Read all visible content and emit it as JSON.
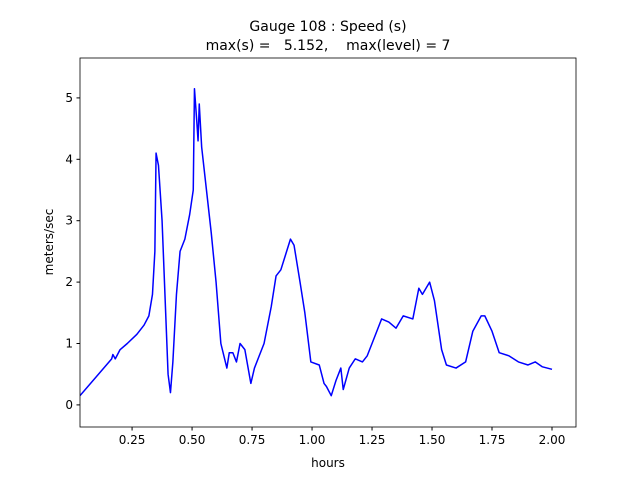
{
  "chart_data": {
    "type": "line",
    "title": "Gauge 108 : Speed (s)",
    "subtitle": "max(s) =   5.152,    max(level) = 7",
    "x_label": "hours",
    "y_label": "meters/sec",
    "x": [
      0.033,
      0.165,
      0.17,
      0.18,
      0.2,
      0.23,
      0.27,
      0.3,
      0.32,
      0.335,
      0.345,
      0.35,
      0.36,
      0.375,
      0.39,
      0.4,
      0.41,
      0.42,
      0.435,
      0.45,
      0.47,
      0.49,
      0.505,
      0.51,
      0.52,
      0.525,
      0.53,
      0.54,
      0.56,
      0.58,
      0.6,
      0.62,
      0.645,
      0.655,
      0.67,
      0.685,
      0.7,
      0.72,
      0.745,
      0.76,
      0.78,
      0.8,
      0.83,
      0.85,
      0.87,
      0.89,
      0.91,
      0.925,
      0.95,
      0.97,
      0.995,
      1.03,
      1.05,
      1.06,
      1.08,
      1.1,
      1.12,
      1.13,
      1.155,
      1.18,
      1.21,
      1.23,
      1.26,
      1.29,
      1.32,
      1.35,
      1.38,
      1.42,
      1.445,
      1.46,
      1.49,
      1.51,
      1.54,
      1.56,
      1.6,
      1.64,
      1.67,
      1.705,
      1.72,
      1.75,
      1.78,
      1.82,
      1.86,
      1.9,
      1.93,
      1.96,
      1.98,
      2.0
    ],
    "series": [
      {
        "name": "s",
        "color": "#0000ff",
        "values": [
          0.15,
          0.75,
          0.82,
          0.75,
          0.9,
          1.0,
          1.15,
          1.3,
          1.45,
          1.8,
          2.5,
          4.1,
          3.9,
          3.0,
          1.5,
          0.5,
          0.2,
          0.7,
          1.8,
          2.5,
          2.7,
          3.1,
          3.5,
          5.15,
          4.6,
          4.3,
          4.9,
          4.2,
          3.5,
          2.8,
          2.0,
          1.0,
          0.6,
          0.85,
          0.85,
          0.7,
          1.0,
          0.9,
          0.35,
          0.6,
          0.8,
          1.0,
          1.6,
          2.1,
          2.2,
          2.45,
          2.7,
          2.6,
          2.0,
          1.5,
          0.7,
          0.65,
          0.35,
          0.3,
          0.15,
          0.4,
          0.6,
          0.25,
          0.6,
          0.75,
          0.7,
          0.8,
          1.1,
          1.4,
          1.35,
          1.25,
          1.45,
          1.4,
          1.9,
          1.8,
          2.0,
          1.7,
          0.9,
          0.65,
          0.6,
          0.7,
          1.2,
          1.45,
          1.45,
          1.2,
          0.85,
          0.8,
          0.7,
          0.65,
          0.7,
          0.62,
          0.6,
          0.58
        ]
      }
    ],
    "xlim": [
      0.033,
      2.1
    ],
    "ylim": [
      -0.36,
      5.65
    ],
    "xticks": [
      {
        "value": 0.25,
        "label": "0.25"
      },
      {
        "value": 0.5,
        "label": "0.50"
      },
      {
        "value": 0.75,
        "label": "0.75"
      },
      {
        "value": 1.0,
        "label": "1.00"
      },
      {
        "value": 1.25,
        "label": "1.25"
      },
      {
        "value": 1.5,
        "label": "1.50"
      },
      {
        "value": 1.75,
        "label": "1.75"
      },
      {
        "value": 2.0,
        "label": "2.00"
      }
    ],
    "yticks": [
      0,
      1,
      2,
      3,
      4,
      5
    ]
  }
}
